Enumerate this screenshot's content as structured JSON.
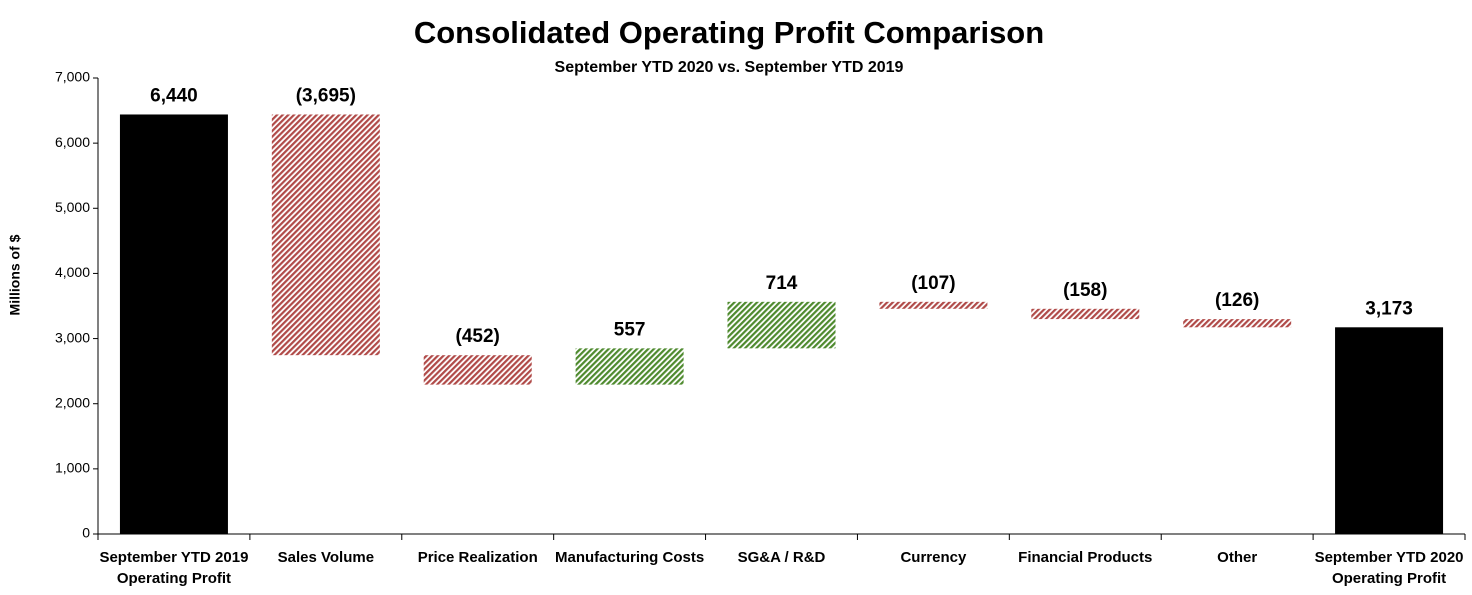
{
  "chart_data": {
    "type": "waterfall",
    "title": "Consolidated Operating Profit Comparison",
    "subtitle": "September YTD 2020 vs. September YTD 2019",
    "y_label": "Millions of $",
    "categories": [
      "September YTD 2019\nOperating Profit",
      "Sales Volume",
      "Price Realization",
      "Manufacturing Costs",
      "SG&A / R&D",
      "Currency",
      "Financial  Products",
      "Other",
      "September YTD 2020\nOperating Profit"
    ],
    "values": [
      6440,
      -3695,
      -452,
      557,
      714,
      -107,
      -158,
      -126,
      3173
    ],
    "value_labels": [
      "6,440",
      "(3,695)",
      "(452)",
      "557",
      "714",
      "(107)",
      "(158)",
      "(126)",
      "3,173"
    ],
    "total_color": "#000000",
    "increase_color": "#4e8a2e",
    "decrease_color": "#b04a48",
    "ylim": [
      0,
      7000
    ],
    "yticks": [
      0,
      {
        "value": 1000,
        "label": "1,000"
      },
      {
        "value": 2000,
        "label": "2,000"
      },
      {
        "value": 3000,
        "label": "3,000"
      },
      {
        "value": 4000,
        "label": "4,000"
      },
      {
        "value": 5000,
        "label": "5,000"
      },
      {
        "value": 6000,
        "label": "6,000"
      },
      {
        "value": 7000,
        "label": "7,000"
      }
    ],
    "grid": false
  }
}
